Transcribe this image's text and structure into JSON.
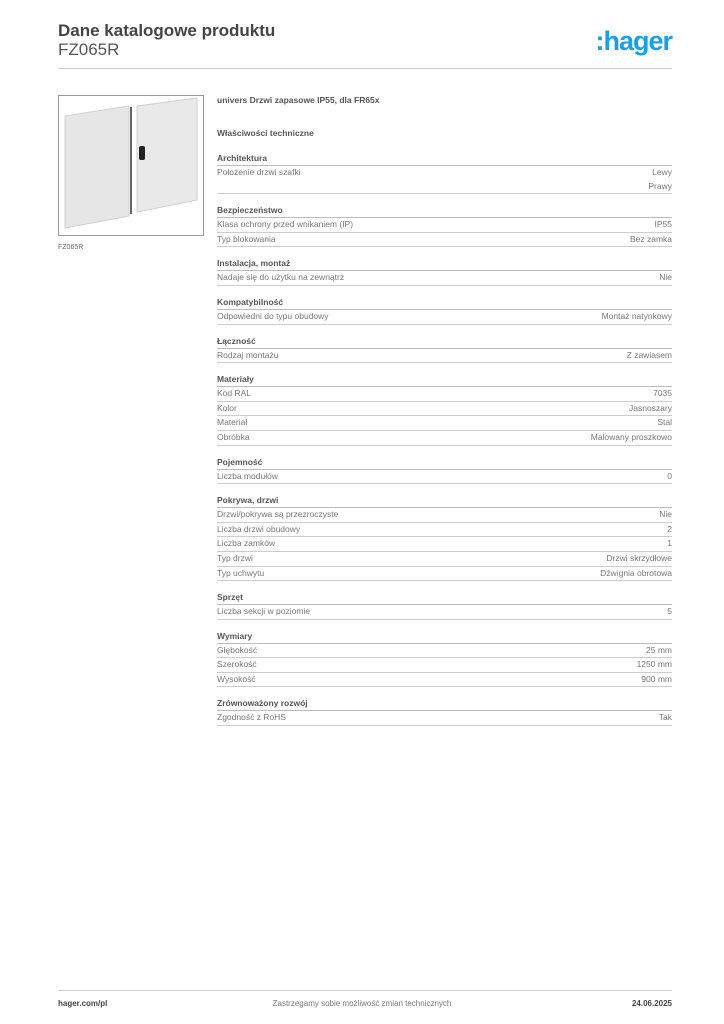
{
  "header": {
    "title": "Dane katalogowe produktu",
    "code": "FZ065R",
    "logo": "hager",
    "brand_color": "#19a0e6"
  },
  "product": {
    "image_caption": "FZ065R",
    "description": "univers Drzwi zapasowe IP55, dla FR65x",
    "properties_title": "Właściwości techniczne"
  },
  "sections": [
    {
      "title": "Architektura",
      "rows": [
        {
          "label": "Położenie drzwi szafki",
          "value": "Lewy\nPrawy"
        }
      ]
    },
    {
      "title": "Bezpieczeństwo",
      "rows": [
        {
          "label": "Klasa ochrony przed wnikaniem (IP)",
          "value": "IP55"
        },
        {
          "label": "Typ blokowania",
          "value": "Bez zamka"
        }
      ]
    },
    {
      "title": "Instalacja, montaż",
      "rows": [
        {
          "label": "Nadaje się do użytku na zewnątrz",
          "value": "Nie"
        }
      ]
    },
    {
      "title": "Kompatybilność",
      "rows": [
        {
          "label": "Odpowiedni do typu obudowy",
          "value": "Montaż natynkowy"
        }
      ]
    },
    {
      "title": "Łączność",
      "rows": [
        {
          "label": "Rodzaj montażu",
          "value": "Z zawiasem"
        }
      ]
    },
    {
      "title": "Materiały",
      "rows": [
        {
          "label": "Kod RAL",
          "value": "7035"
        },
        {
          "label": "Kolor",
          "value": "Jasnoszary"
        },
        {
          "label": "Materiał",
          "value": "Stal"
        },
        {
          "label": "Obróbka",
          "value": "Malowany proszkowo"
        }
      ]
    },
    {
      "title": "Pojemność",
      "rows": [
        {
          "label": "Liczba modułów",
          "value": "0"
        }
      ]
    },
    {
      "title": "Pokrywa, drzwi",
      "rows": [
        {
          "label": "Drzwi/pokrywa są przezroczyste",
          "value": "Nie"
        },
        {
          "label": "Liczba drzwi obudowy",
          "value": "2"
        },
        {
          "label": "Liczba zamków",
          "value": "1"
        },
        {
          "label": "Typ drzwi",
          "value": "Drzwi skrzydłowe"
        },
        {
          "label": "Typ uchwytu",
          "value": "Dźwignia obrotowa"
        }
      ]
    },
    {
      "title": "Sprzęt",
      "rows": [
        {
          "label": "Liczba sekcji w poziomie",
          "value": "5"
        }
      ]
    },
    {
      "title": "Wymiary",
      "rows": [
        {
          "label": "Głębokość",
          "value": "25 mm"
        },
        {
          "label": "Szerokość",
          "value": "1250 mm"
        },
        {
          "label": "Wysokość",
          "value": "900 mm"
        }
      ]
    },
    {
      "title": "Zrównoważony rozwój",
      "rows": [
        {
          "label": "Zgodność z RoHS",
          "value": "Tak"
        }
      ]
    }
  ],
  "footer": {
    "website": "hager.com/pl",
    "notice": "Zastrzegamy sobie możliwość zmian technicznych",
    "date": "24.06.2025"
  }
}
